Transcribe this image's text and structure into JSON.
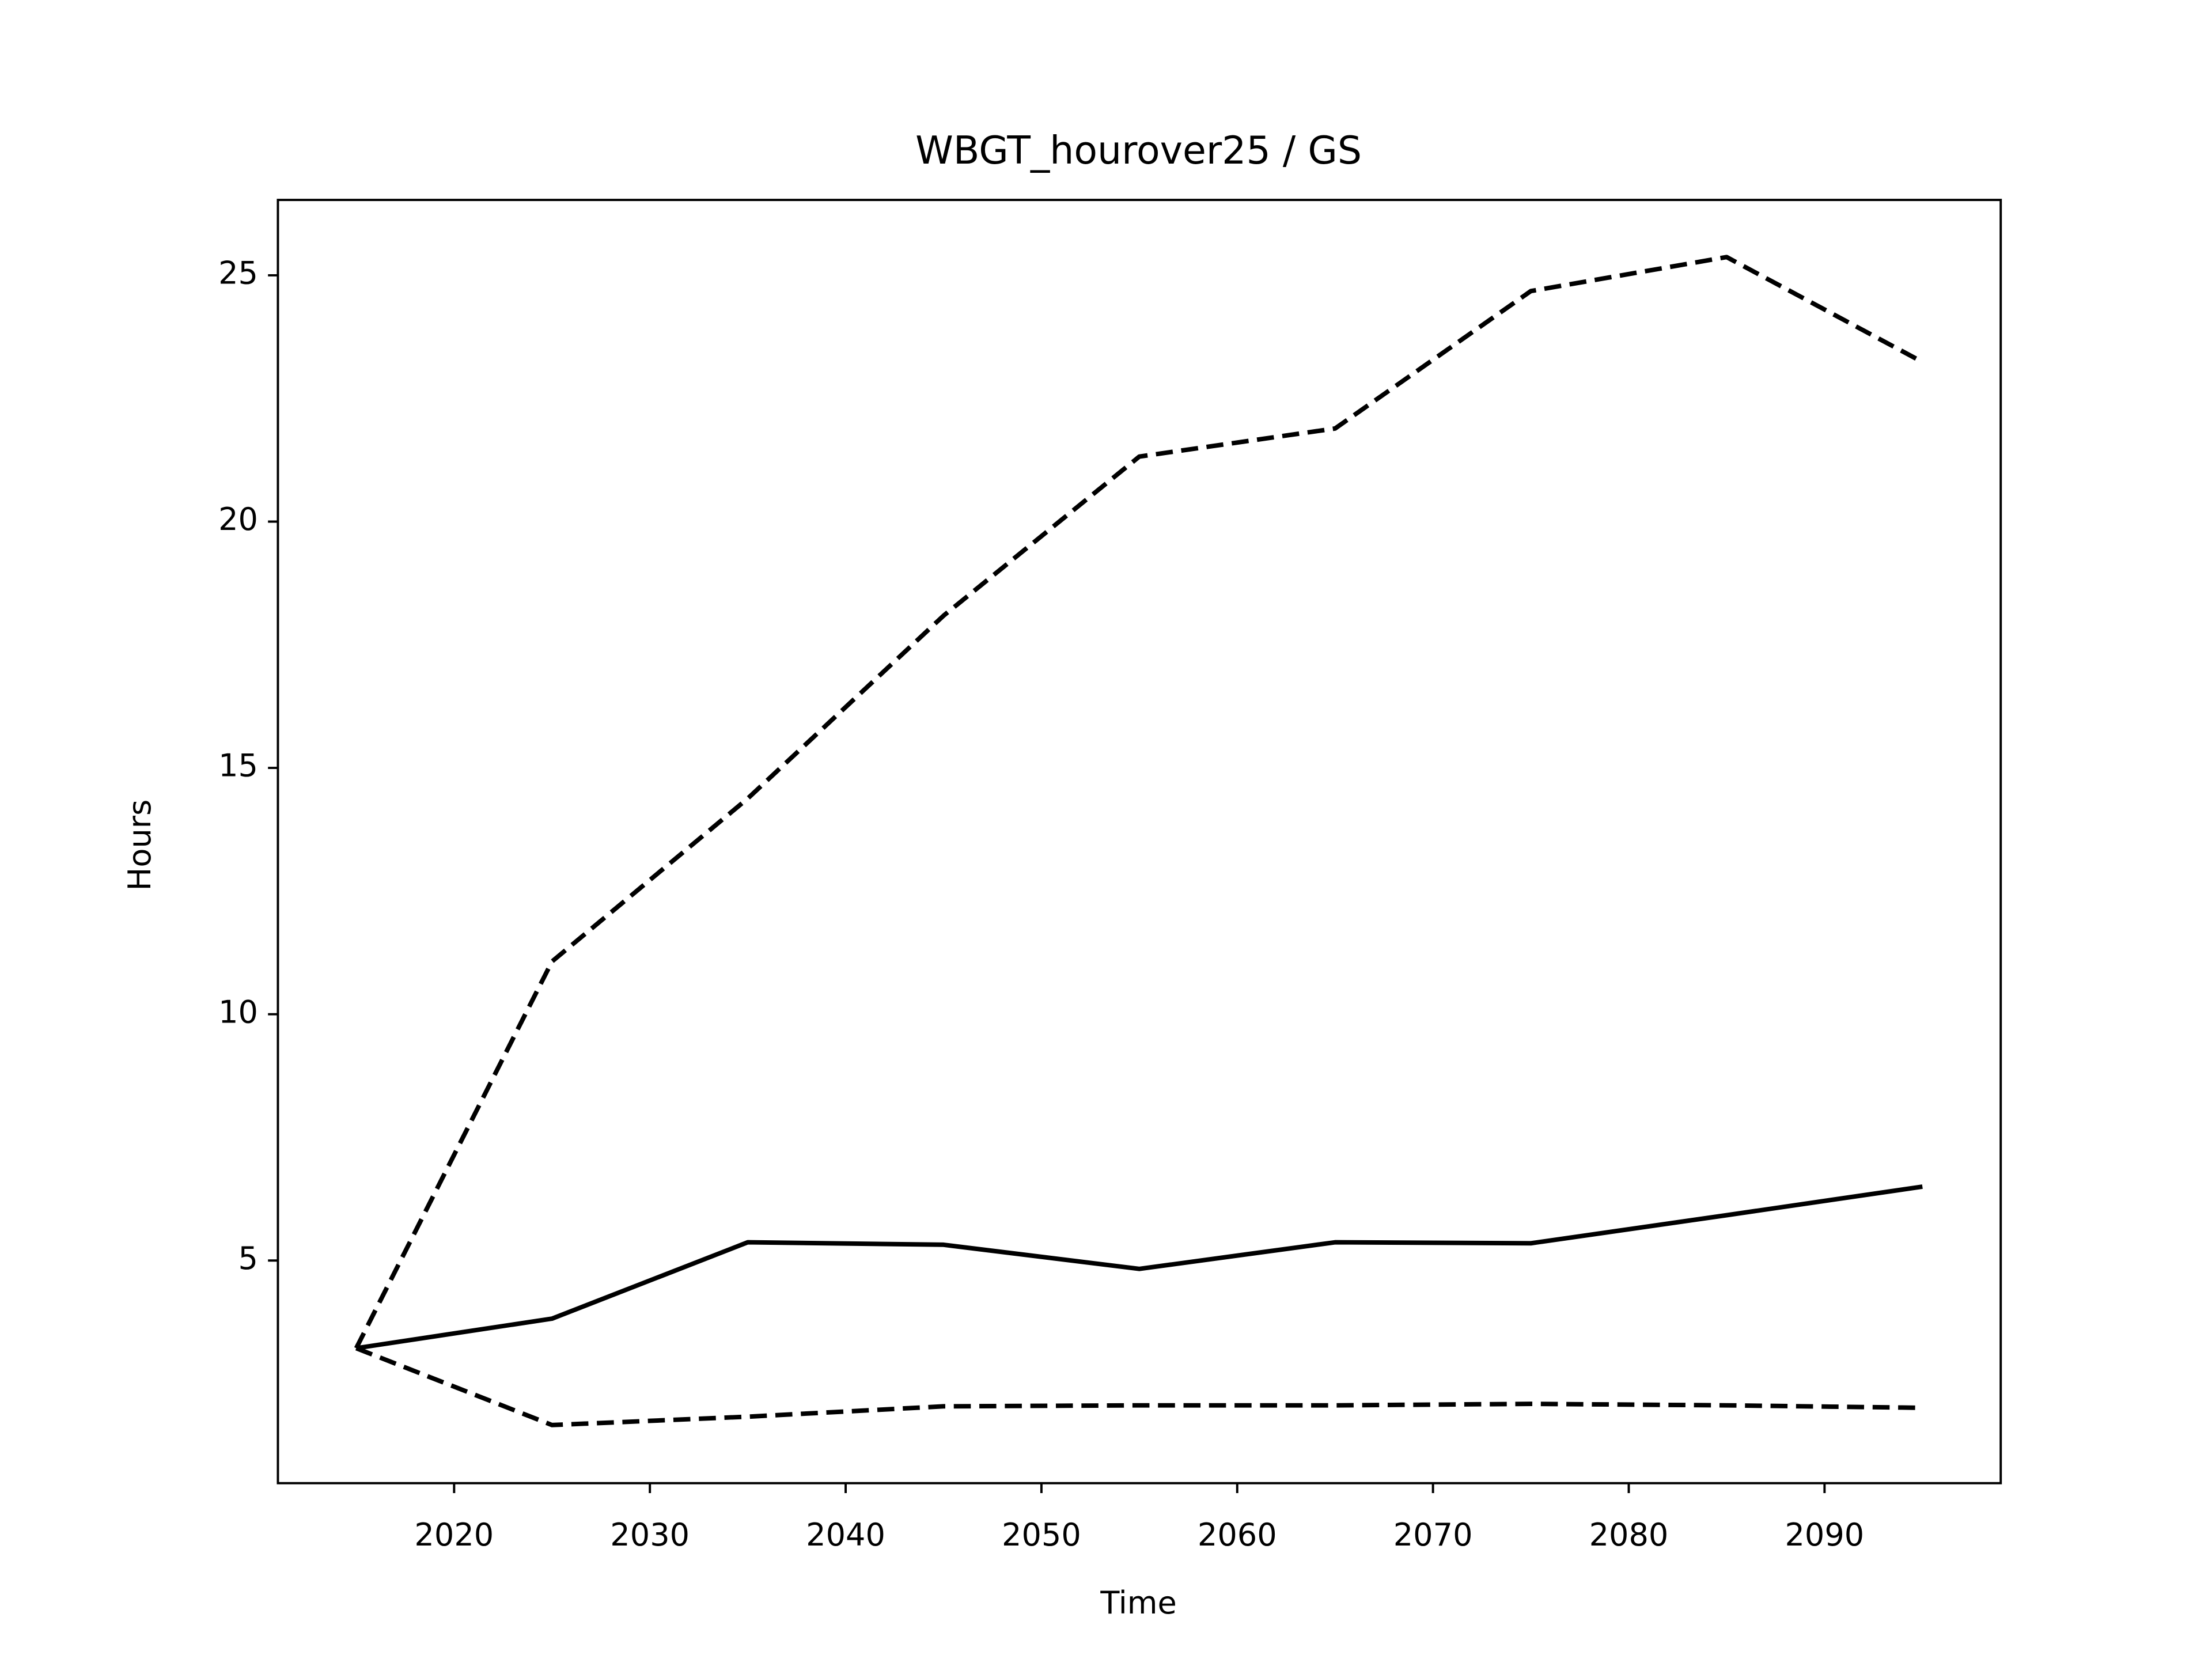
{
  "chart_data": {
    "type": "line",
    "title": "WBGT_hourover25 / GS",
    "x_label": "Time",
    "y_label": "Hours",
    "x": [
      2015,
      2025,
      2035,
      2045,
      2055,
      2065,
      2075,
      2085,
      2095
    ],
    "series": [
      {
        "color": "#000000",
        "style": "solid",
        "values": [
          3.22,
          3.82,
          5.37,
          5.32,
          4.83,
          5.37,
          5.35,
          5.92,
          6.5
        ]
      },
      {
        "color": "#000000",
        "style": "dashed",
        "values": [
          3.22,
          11.07,
          14.38,
          18.09,
          21.32,
          21.89,
          24.68,
          25.37,
          23.24
        ]
      },
      {
        "color": "#000000",
        "style": "dashed",
        "values": [
          3.22,
          1.66,
          1.83,
          2.04,
          2.06,
          2.06,
          2.09,
          2.06,
          2.01
        ]
      }
    ],
    "xlim": [
      2011,
      2099
    ],
    "ylim": [
      0.48,
      26.53
    ],
    "xticks": [
      2020,
      2030,
      2040,
      2050,
      2060,
      2070,
      2080,
      2090
    ],
    "yticks": [
      5,
      10,
      15,
      20,
      25
    ],
    "grid": false
  }
}
